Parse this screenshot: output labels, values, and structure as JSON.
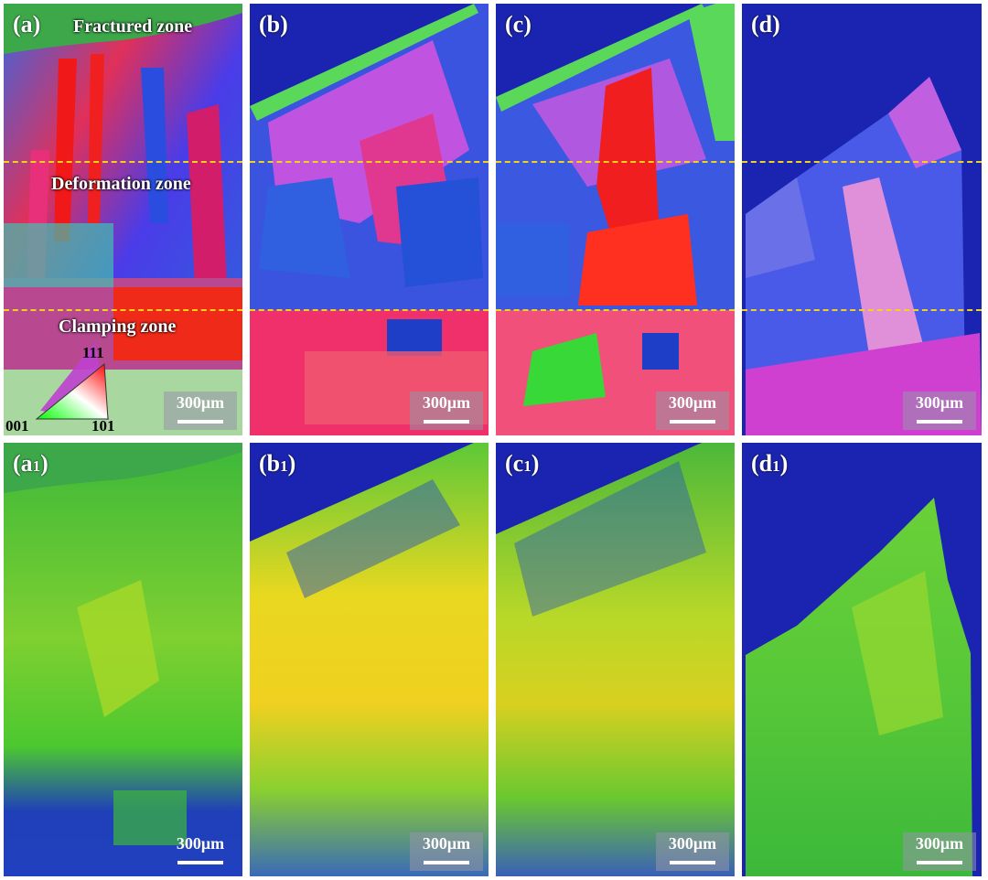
{
  "panels_top": [
    {
      "label": "(a)",
      "scale": "300μm"
    },
    {
      "label": "(b)",
      "scale": "300μm"
    },
    {
      "label": "(c)",
      "scale": "300μm"
    },
    {
      "label": "(d)",
      "scale": "300μm"
    }
  ],
  "panels_bottom": [
    {
      "label_main": "(a",
      "label_sub": "1",
      "label_end": ")",
      "scale": "300μm"
    },
    {
      "label_main": "(b",
      "label_sub": "1",
      "label_end": ")",
      "scale": "300μm"
    },
    {
      "label_main": "(c",
      "label_sub": "1",
      "label_end": ")",
      "scale": "300μm"
    },
    {
      "label_main": "(d",
      "label_sub": "1",
      "label_end": ")",
      "scale": "300μm"
    }
  ],
  "zones": {
    "fractured": "Fractured zone",
    "deformation": "Deformation zone",
    "clamping": "Clamping zone"
  },
  "ipf_legend": {
    "corner_111": "111",
    "corner_001": "001",
    "corner_101": "101"
  },
  "colors": {
    "background": "#1a24b0",
    "dashed_line": "#f2d21a"
  }
}
